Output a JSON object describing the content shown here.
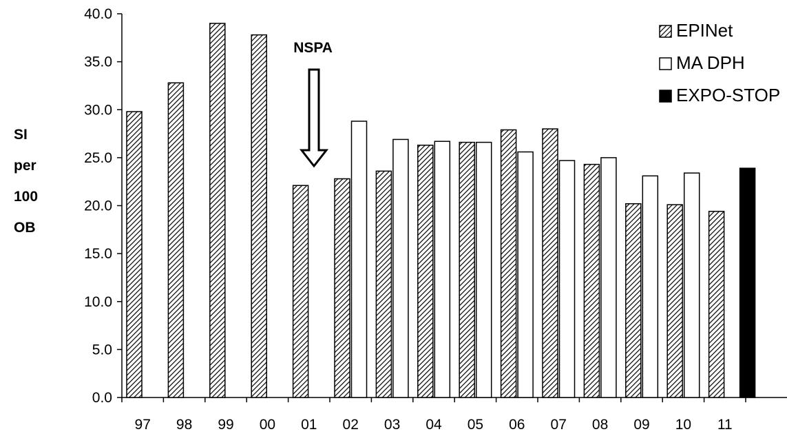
{
  "chart_data": {
    "type": "bar",
    "title": "",
    "xlabel": "",
    "ylabel_lines": [
      "SI",
      "per",
      "100",
      "OB"
    ],
    "ylim": [
      0,
      40
    ],
    "ytick_step": 5,
    "yticks": [
      "0.0",
      "5.0",
      "10.0",
      "15.0",
      "20.0",
      "25.0",
      "30.0",
      "35.0",
      "40.0"
    ],
    "categories": [
      "97",
      "98",
      "99",
      "00",
      "01",
      "02",
      "03",
      "04",
      "05",
      "06",
      "07",
      "08",
      "09",
      "10",
      "11"
    ],
    "series": [
      {
        "name": "EPINet",
        "fill": "hatched",
        "values": [
          29.8,
          32.8,
          39.0,
          37.8,
          22.1,
          22.8,
          23.6,
          26.3,
          26.6,
          27.9,
          28.0,
          24.3,
          20.2,
          20.1,
          19.4
        ]
      },
      {
        "name": "MA DPH",
        "fill": "white",
        "values": [
          null,
          null,
          null,
          null,
          null,
          28.8,
          26.9,
          26.7,
          26.6,
          25.6,
          24.7,
          25.0,
          23.1,
          23.4,
          null
        ]
      },
      {
        "name": "EXPO-STOP",
        "fill": "black",
        "values": [
          null,
          null,
          null,
          null,
          null,
          null,
          null,
          null,
          null,
          null,
          null,
          null,
          null,
          null,
          23.9
        ]
      }
    ],
    "legend_placement": "top-right",
    "grid": false,
    "annotations": [
      {
        "text": "NSPA",
        "category": "01",
        "arrow": "down"
      }
    ]
  }
}
